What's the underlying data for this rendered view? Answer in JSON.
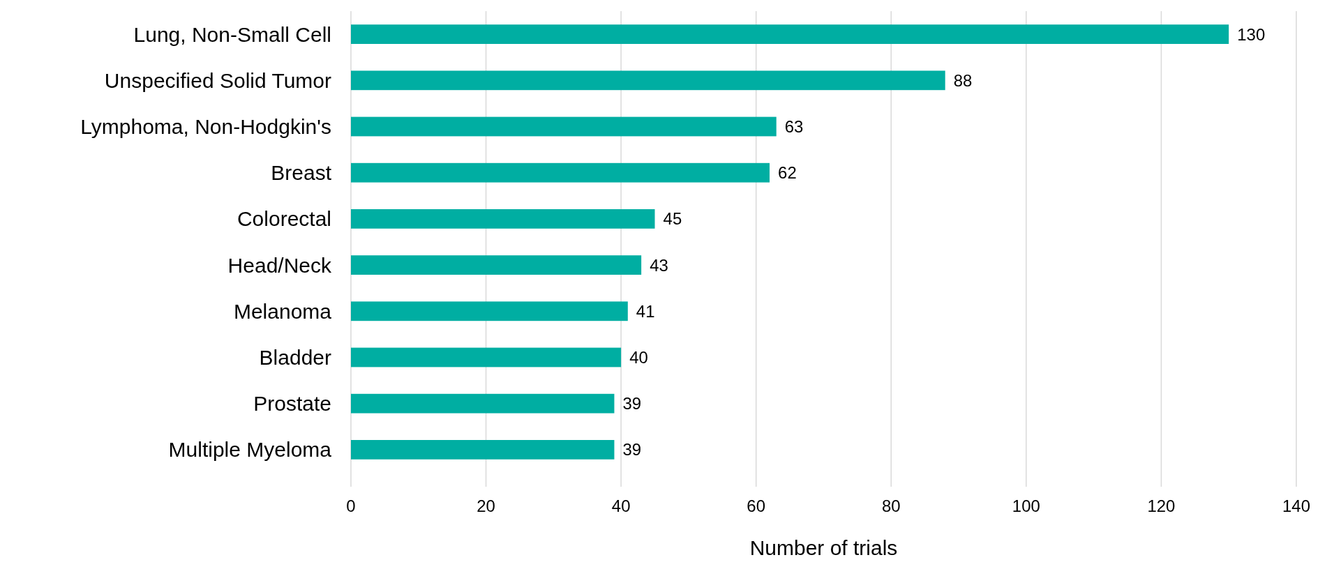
{
  "chart_data": {
    "type": "bar",
    "orientation": "horizontal",
    "xlabel": "Number of trials",
    "categories": [
      "Lung, Non-Small Cell",
      "Unspecified Solid Tumor",
      "Lymphoma, Non-Hodgkin's",
      "Breast",
      "Colorectal",
      "Head/Neck",
      "Melanoma",
      "Bladder",
      "Prostate",
      "Multiple Myeloma"
    ],
    "values": [
      130,
      88,
      63,
      62,
      45,
      43,
      41,
      40,
      39,
      39
    ],
    "color": "#00aea2",
    "xlim": [
      0,
      140
    ],
    "xticks": [
      0,
      20,
      40,
      60,
      80,
      100,
      120,
      140
    ],
    "grid": "x",
    "data_labels": true
  }
}
